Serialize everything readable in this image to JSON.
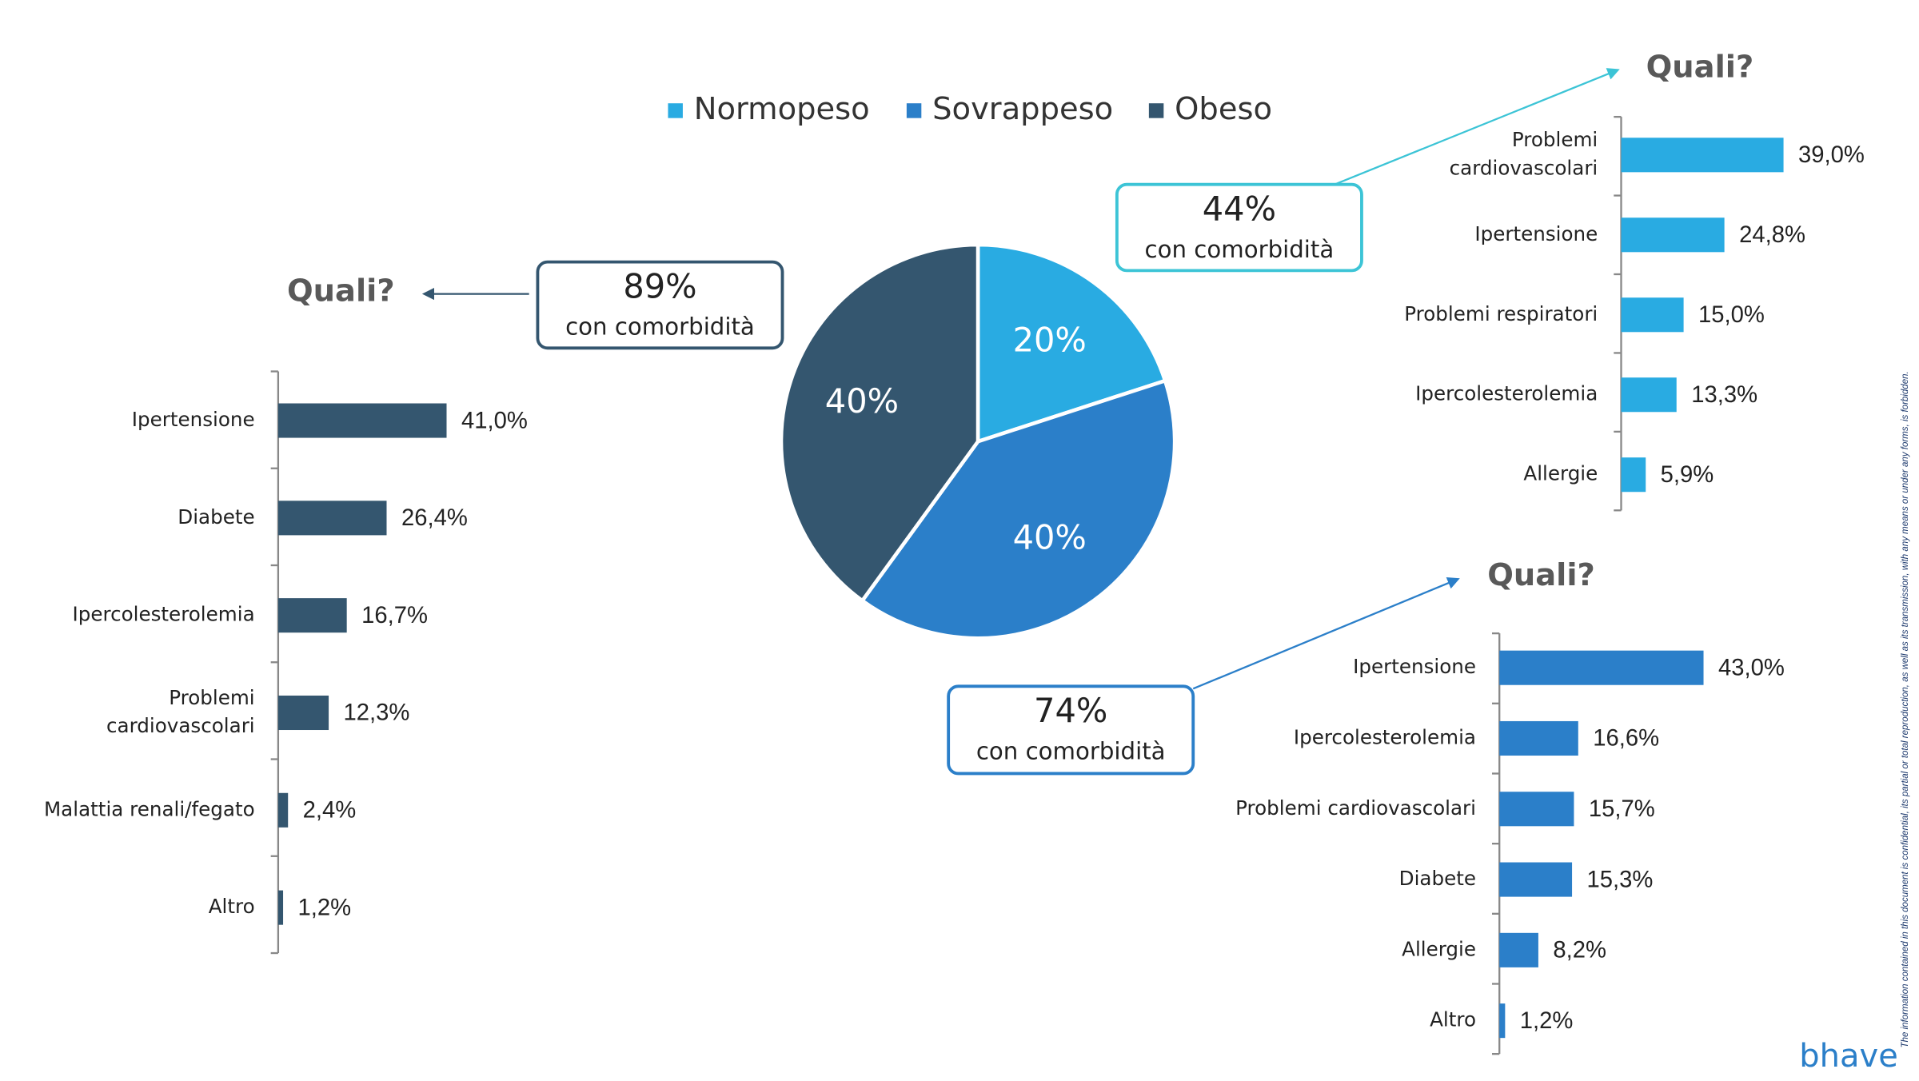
{
  "chart_data": [
    {
      "type": "pie",
      "categories": [
        "Normopeso",
        "Sovrappeso",
        "Obeso"
      ],
      "values": [
        20,
        40,
        40
      ],
      "value_labels": [
        "20%",
        "40%",
        "40%"
      ],
      "colors": [
        "#29abe2",
        "#2b7fc9",
        "#34566f"
      ]
    },
    {
      "type": "hbar",
      "title": "Quali?",
      "annotation": "44%",
      "annotation_text": "con comorbidità",
      "color": "#29abe2",
      "categories": [
        "Problemi\ncardiovascolari",
        "Ipertensione",
        "Problemi respiratori",
        "Ipercolesterolemia",
        "Allergie"
      ],
      "values": [
        39.0,
        24.8,
        15.0,
        13.3,
        5.9
      ],
      "value_labels": [
        "39,0%",
        "24,8%",
        "15,0%",
        "13,3%",
        "5,9%"
      ]
    },
    {
      "type": "hbar",
      "title": "Quali?",
      "annotation": "89%",
      "annotation_text": "con comorbidità",
      "color": "#34566f",
      "categories": [
        "Ipertensione",
        "Diabete",
        "Ipercolesterolemia",
        "Problemi\ncardiovascolari",
        "Malattia renali/fegato",
        "Altro"
      ],
      "values": [
        41.0,
        26.4,
        16.7,
        12.3,
        2.4,
        1.2
      ],
      "value_labels": [
        "41,0%",
        "26,4%",
        "16,7%",
        "12,3%",
        "2,4%",
        "1,2%"
      ]
    },
    {
      "type": "hbar",
      "title": "Quali?",
      "annotation": "74%",
      "annotation_text": "con comorbidità",
      "color": "#2b7fc9",
      "categories": [
        "Ipertensione",
        "Ipercolesterolemia",
        "Problemi cardiovascolari",
        "Diabete",
        "Allergie",
        "Altro"
      ],
      "values": [
        43.0,
        16.6,
        15.7,
        15.3,
        8.2,
        1.2
      ],
      "value_labels": [
        "43,0%",
        "16,6%",
        "15,7%",
        "15,3%",
        "8,2%",
        "1,2%"
      ]
    }
  ],
  "disclaimer": "The information contained in this document is confidential, its partial or total reproduction, as well as its transmission, with any means or under any forms, is forbidden.",
  "logo": "bhave"
}
